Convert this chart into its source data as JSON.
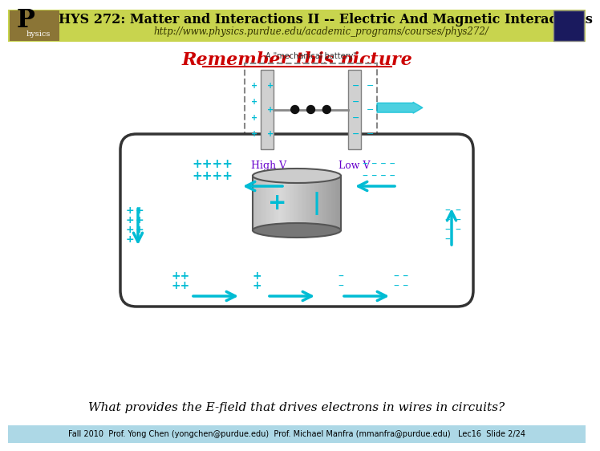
{
  "header_bg": "#c8d44e",
  "header_text": "PHYS 272: Matter and Interactions II -- Electric And Magnetic Interactions",
  "header_url": "http://www.physics.purdue.edu/academic_programs/courses/phys272/",
  "header_text_color": "#000000",
  "header_url_color": "#555500",
  "title_text": "Remember this picture",
  "title_color": "#cc0000",
  "body_bg": "#ffffff",
  "footer_bg": "#add8e6",
  "footer_text": "Fall 2010  Prof. Yong Chen (yongchen@purdue.edu)  Prof. Michael Manfra (mmanfra@purdue.edu)   Lec16  Slide 2/24",
  "footer_color": "#000000",
  "question_text": "What provides the E-field that drives electrons in wires in circuits?",
  "question_color": "#000000",
  "cyan": "#00bcd4",
  "purple": "#6600cc"
}
